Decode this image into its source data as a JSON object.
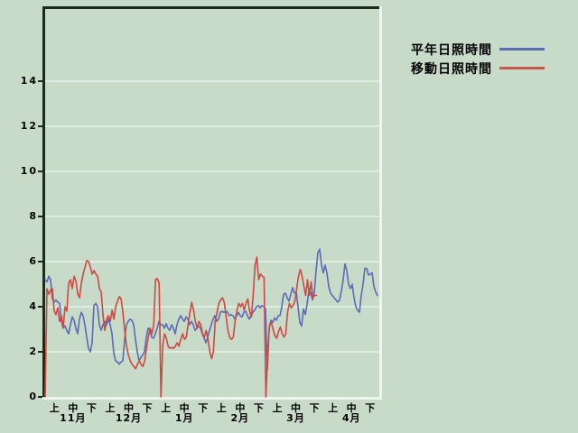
{
  "page": {
    "background": "#c8dac8",
    "plot_border_dark": "#1c2c1c",
    "plot_border_light": "#eef4ee",
    "gridline_color": "#e9f2e9",
    "text_color": "#000000"
  },
  "legend": {
    "items": [
      {
        "label": "平年日照時間",
        "color": "#5b6bb5"
      },
      {
        "label": "移動日照時間",
        "color": "#c8584e"
      }
    ]
  },
  "chart_data": {
    "type": "line",
    "title": "",
    "xlabel": "",
    "ylabel": "",
    "y_unit": "hours",
    "ylim": [
      0,
      17.2
    ],
    "yticks": [
      0,
      2,
      4,
      6,
      8,
      10,
      12,
      14
    ],
    "grid": "horizontal-only",
    "legend_position": "top-right-outside",
    "x_axis": {
      "months": [
        "11月",
        "12月",
        "1月",
        "2月",
        "3月",
        "4月"
      ],
      "period_labels": [
        "上",
        "中",
        "下",
        "上",
        "中",
        "下",
        "上",
        "中",
        "下",
        "上",
        "中",
        "下",
        "上",
        "中",
        "下",
        "上",
        "中",
        "下"
      ],
      "season_days": 181
    },
    "series": [
      {
        "name": "平年日照時間",
        "color": "#5b6bb5",
        "day_start": 0,
        "day_end": 180,
        "values": [
          5.2,
          5.1,
          5.35,
          5.2,
          4.35,
          4.2,
          4.3,
          4.2,
          4.15,
          3.35,
          3.05,
          3.15,
          2.95,
          2.8,
          3.2,
          3.55,
          3.4,
          3.05,
          2.8,
          3.45,
          3.75,
          3.6,
          3.2,
          2.65,
          2.15,
          2.0,
          2.4,
          4.05,
          4.15,
          4.0,
          3.2,
          2.95,
          3.2,
          3.35,
          3.2,
          3.45,
          3.2,
          2.8,
          1.95,
          1.6,
          1.55,
          1.45,
          1.55,
          1.6,
          2.55,
          3.2,
          3.35,
          3.45,
          3.4,
          3.2,
          2.55,
          2.0,
          1.6,
          1.75,
          1.85,
          2.0,
          2.65,
          3.05,
          2.95,
          2.65,
          2.6,
          2.8,
          3.05,
          3.35,
          3.2,
          3.2,
          3.05,
          3.25,
          3.05,
          2.95,
          3.2,
          3.05,
          2.8,
          3.2,
          3.45,
          3.6,
          3.45,
          3.35,
          3.55,
          3.45,
          3.2,
          3.35,
          3.2,
          2.95,
          3.05,
          3.15,
          3.05,
          2.8,
          2.6,
          2.4,
          2.65,
          2.95,
          3.2,
          3.45,
          3.6,
          3.35,
          3.45,
          3.75,
          3.8,
          3.75,
          3.8,
          3.75,
          3.6,
          3.65,
          3.6,
          3.45,
          3.6,
          3.75,
          3.6,
          3.55,
          3.75,
          3.8,
          3.6,
          3.45,
          3.6,
          3.75,
          3.85,
          4.0,
          4.05,
          3.95,
          4.05,
          4.0,
          3.9,
          1.2,
          3.0,
          3.4,
          3.3,
          3.5,
          3.4,
          3.6,
          3.6,
          4.0,
          4.55,
          4.6,
          4.4,
          4.25,
          4.55,
          4.85,
          4.6,
          4.65,
          4.0,
          3.3,
          3.15,
          3.9,
          3.65,
          4.1,
          4.7,
          4.65,
          4.3,
          4.6,
          5.6,
          6.4,
          6.55,
          5.85,
          5.5,
          5.85,
          5.5,
          4.9,
          4.6,
          4.5,
          4.4,
          4.3,
          4.2,
          4.3,
          4.7,
          5.2,
          5.9,
          5.6,
          5.0,
          4.8,
          5.0,
          4.4,
          4.0,
          3.85,
          3.75,
          4.5,
          5.0,
          5.7,
          5.7,
          5.4,
          5.45,
          5.5,
          4.9,
          4.65,
          4.5
        ]
      },
      {
        "name": "移動日照時間",
        "color": "#c8584e",
        "line_color": "#d04840",
        "day_start": 0,
        "day_end": 147,
        "values": [
          0,
          4.8,
          4.55,
          4.75,
          4.8,
          3.8,
          3.65,
          3.95,
          3.35,
          3.6,
          3.05,
          4.0,
          3.8,
          5.05,
          5.2,
          4.8,
          5.35,
          5.15,
          4.55,
          4.4,
          5.05,
          5.45,
          5.75,
          6.05,
          6.0,
          5.75,
          5.45,
          5.6,
          5.45,
          5.35,
          4.8,
          4.65,
          3.6,
          2.95,
          3.45,
          3.6,
          3.35,
          3.85,
          3.45,
          4.0,
          4.25,
          4.45,
          4.35,
          3.75,
          2.95,
          2.25,
          1.85,
          1.6,
          1.45,
          1.35,
          1.25,
          1.45,
          1.6,
          1.45,
          1.35,
          1.6,
          2.15,
          2.65,
          3.05,
          2.8,
          3.2,
          5.2,
          5.25,
          5.05,
          0,
          2.3,
          2.8,
          2.6,
          2.25,
          2.15,
          2.2,
          2.15,
          2.25,
          2.4,
          2.25,
          2.55,
          2.8,
          2.55,
          2.65,
          3.2,
          3.75,
          4.2,
          3.85,
          3.35,
          3.05,
          3.35,
          3.2,
          2.8,
          2.65,
          2.95,
          2.55,
          2.0,
          1.7,
          2.0,
          3.35,
          3.75,
          4.15,
          4.3,
          4.4,
          4.2,
          3.6,
          2.95,
          2.65,
          2.55,
          2.65,
          3.35,
          3.85,
          4.15,
          4.0,
          4.15,
          3.85,
          4.15,
          4.35,
          3.8,
          3.55,
          4.55,
          5.85,
          6.2,
          5.2,
          5.45,
          5.35,
          5.3,
          0,
          2.0,
          3.2,
          3.3,
          3.0,
          2.7,
          2.6,
          2.9,
          3.1,
          2.8,
          2.65,
          2.8,
          3.75,
          4.15,
          3.95,
          4.05,
          4.25,
          4.8,
          5.35,
          5.65,
          5.35,
          4.9,
          4.5,
          5.2,
          4.5,
          5.1,
          4.4,
          4.5,
          4.5
        ]
      }
    ]
  }
}
